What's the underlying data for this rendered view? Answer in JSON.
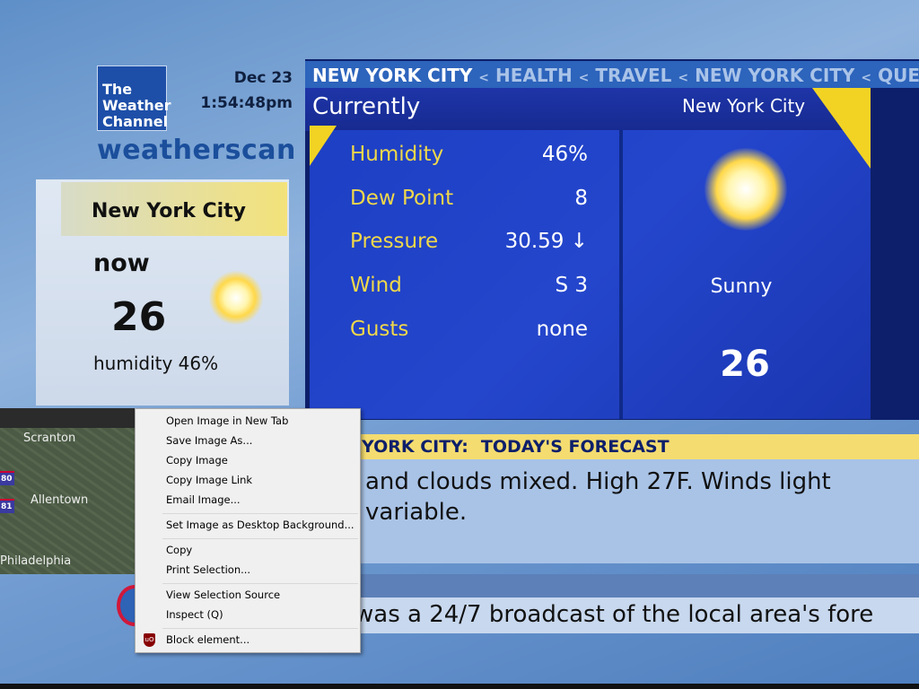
{
  "header": {
    "logo_text": "The Weather Channel",
    "brand": "weatherscan",
    "date": "Dec 23",
    "time": "1:54:48pm"
  },
  "left_panel": {
    "city": "New York City",
    "label": "now",
    "temp": "26",
    "humidity": "humidity 46%",
    "icon": "sun-icon"
  },
  "breadcrumb": {
    "current": "NEW YORK CITY",
    "items": [
      "HEALTH",
      "TRAVEL",
      "NEW YORK CITY",
      "QUEEN"
    ],
    "sep": "<"
  },
  "current": {
    "title": "Currently",
    "city": "New York City",
    "rows": [
      {
        "label": "Humidity",
        "value": "46%"
      },
      {
        "label": "Dew Point",
        "value": "8"
      },
      {
        "label": "Pressure",
        "value": "30.59 ↓"
      },
      {
        "label": "Wind",
        "value": "S 3"
      },
      {
        "label": "Gusts",
        "value": "none"
      }
    ],
    "condition": "Sunny",
    "temp": "26",
    "icon": "sun-icon"
  },
  "forecast": {
    "city": "YORK CITY:",
    "title": "TODAY'S FORECAST",
    "text_line1": "and clouds mixed. High 27F. Winds light",
    "text_line2": "variable."
  },
  "ticker": {
    "text": "was a 24/7 broadcast of the local area's fore"
  },
  "map": {
    "cities": [
      "Scranton",
      "Allentown",
      "Philadelphia"
    ],
    "shields": [
      "80",
      "81"
    ]
  },
  "context_menu": {
    "items": [
      "Open Image in New Tab",
      "Save Image As...",
      "Copy Image",
      "Copy Image Link",
      "Email Image...",
      "Set Image as Desktop Background...",
      "Copy",
      "Print Selection...",
      "View Selection Source",
      "Inspect (Q)",
      "Block element..."
    ],
    "ublock_icon": "ublock-shield-icon"
  },
  "colors": {
    "accent_yellow": "#f2d324",
    "panel_blue": "#1d3fc4",
    "brand_blue": "#1b4f9c"
  }
}
